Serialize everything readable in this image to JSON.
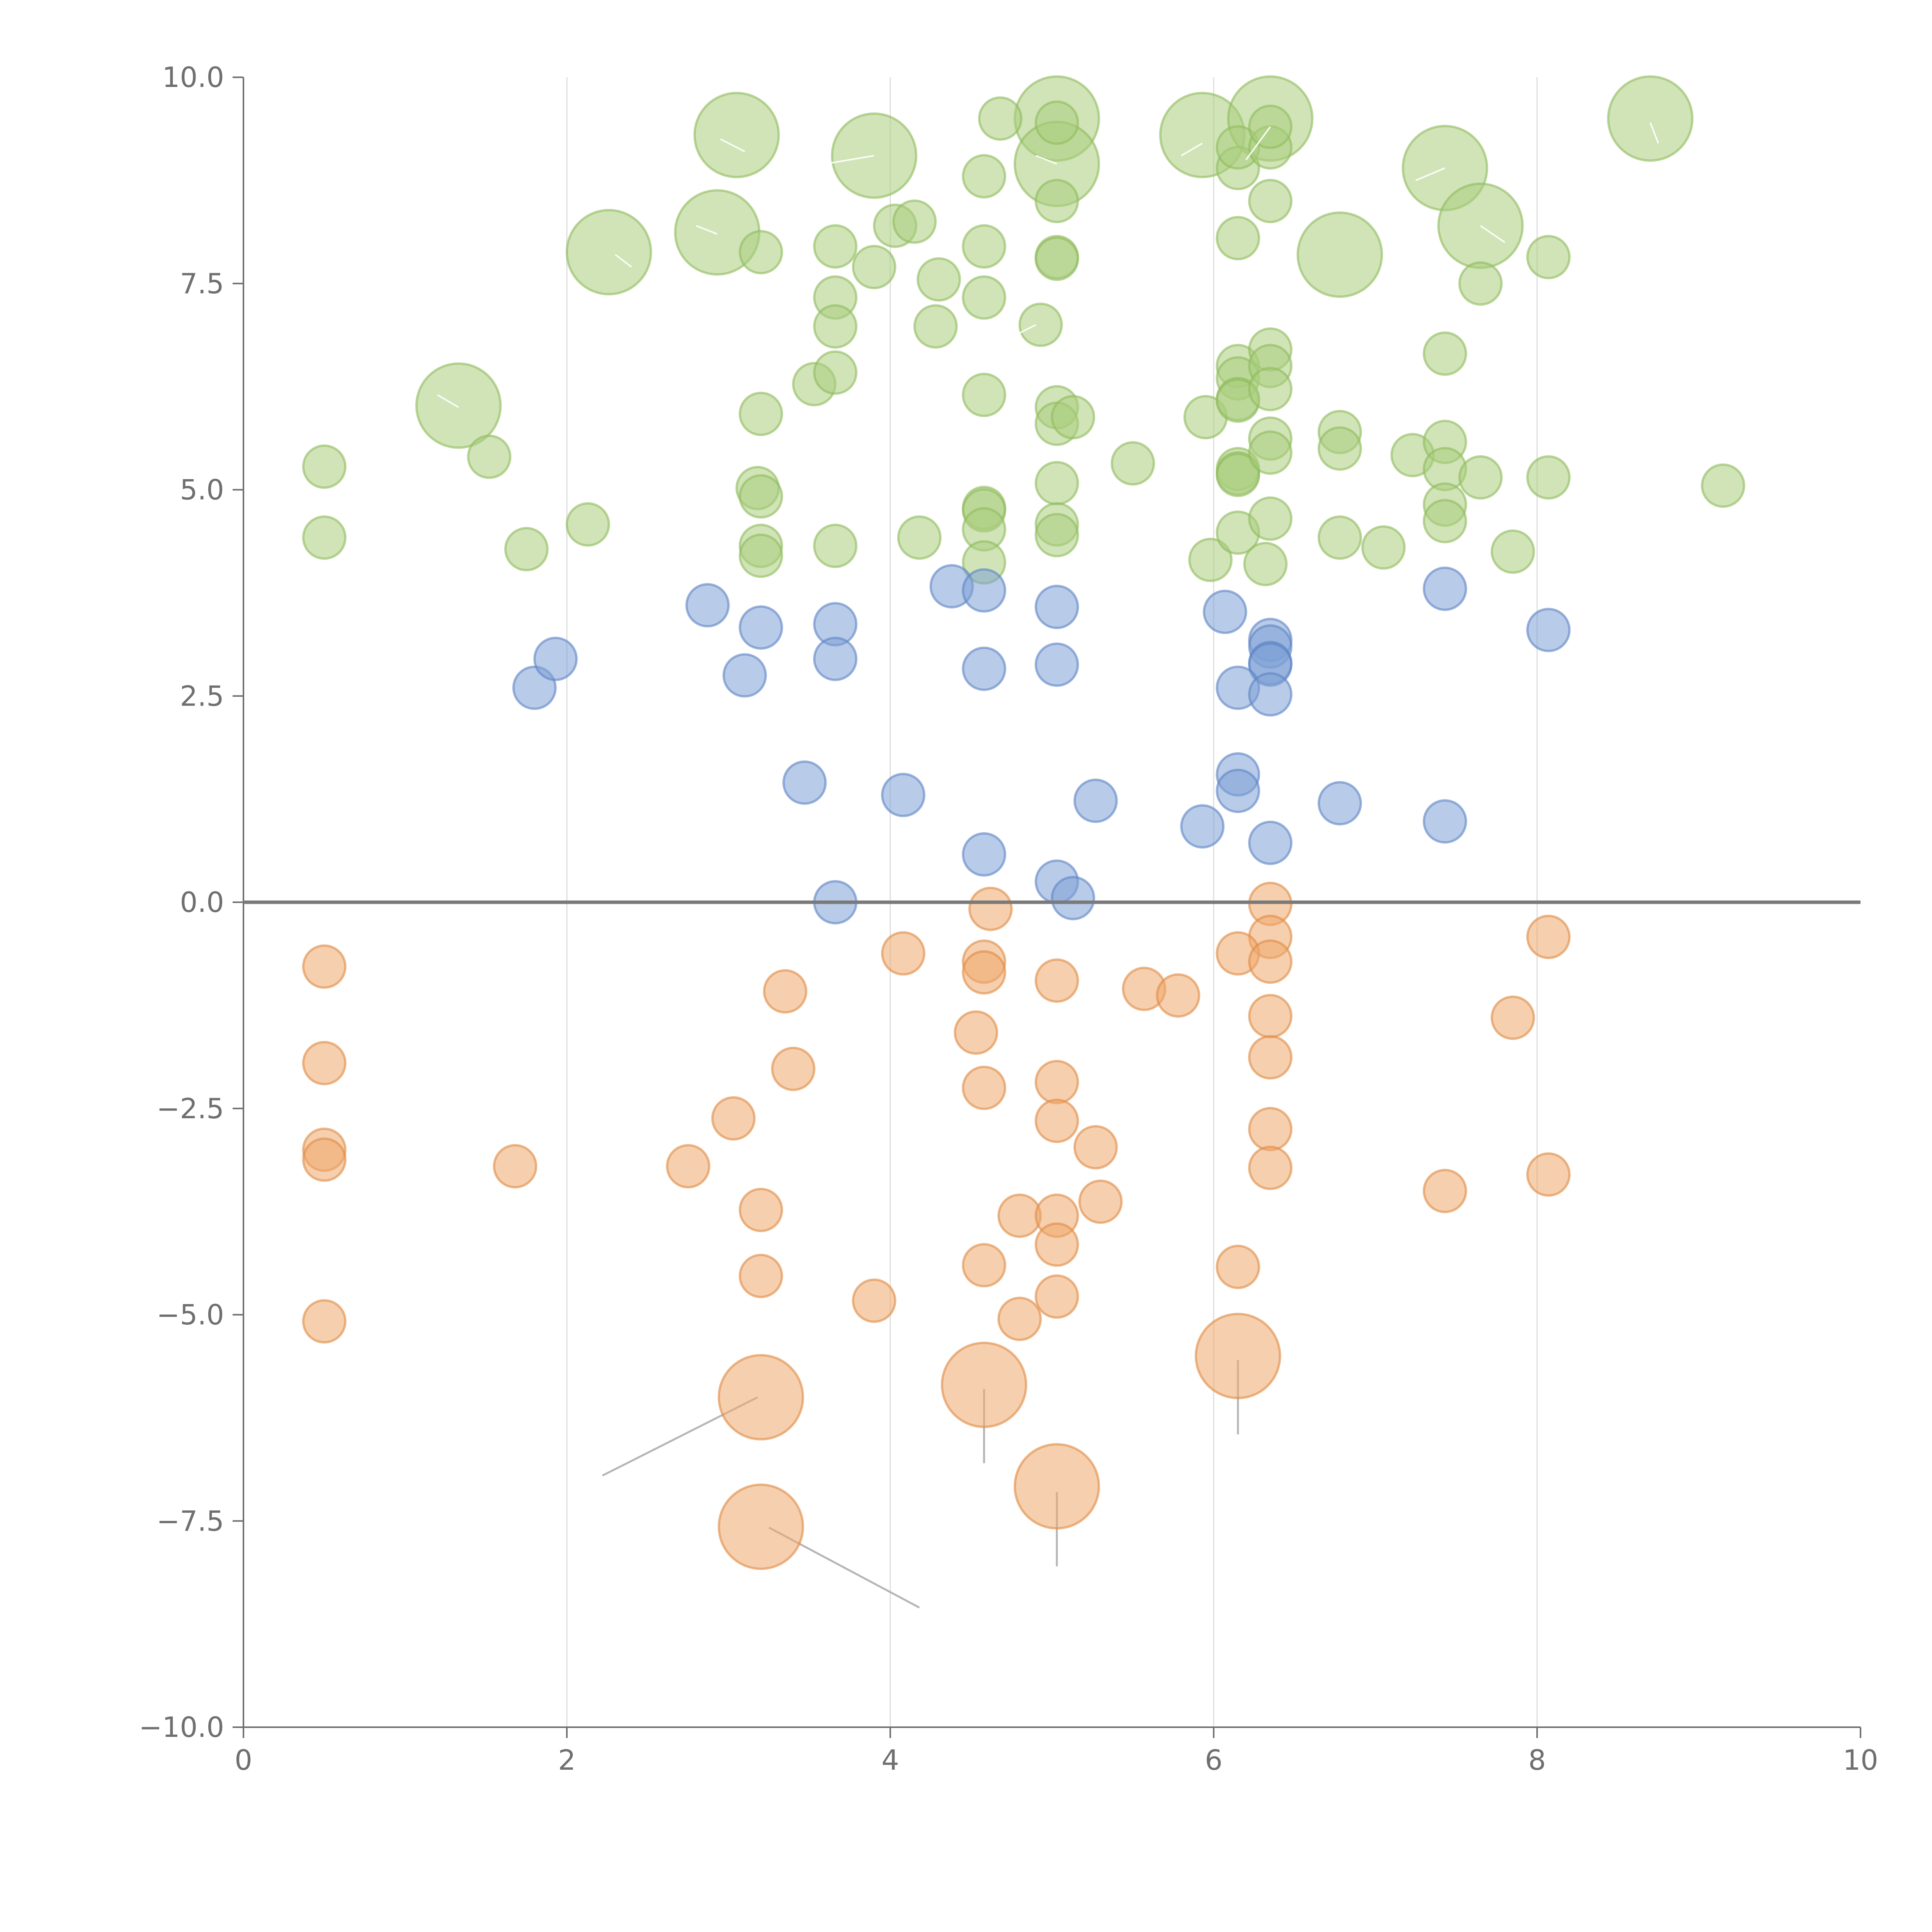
{
  "chart_data": {
    "type": "scatter",
    "xlim": [
      0,
      10
    ],
    "ylim": [
      -10,
      10
    ],
    "x_ticks": [
      "0",
      "2",
      "4",
      "6",
      "8",
      "10"
    ],
    "x_tick_values": [
      0,
      2,
      4,
      6,
      8,
      10
    ],
    "y_ticks": [
      "10.0",
      "7.5",
      "5.0",
      "2.5",
      "0.0",
      "−2.5",
      "−5.0",
      "−7.5",
      "−10.0"
    ],
    "y_tick_values": [
      10,
      7.5,
      5,
      2.5,
      0,
      -2.5,
      -5,
      -7.5,
      -10
    ],
    "grid": "vertical",
    "reference_line_y": 0,
    "colors": {
      "green": "#a9cd7e",
      "blue": "#7ea0d6",
      "orange": "#eea86b",
      "green_stroke": "#8fbb5c",
      "blue_stroke": "#5d84c4",
      "orange_stroke": "#e08a43"
    },
    "series": [
      {
        "color": "green",
        "points": [
          [
            3.05,
            9.3,
            34
          ],
          [
            3.9,
            9.05,
            34
          ],
          [
            5.03,
            9.5,
            34
          ],
          [
            5.03,
            8.95,
            34
          ],
          [
            5.93,
            9.3,
            34
          ],
          [
            6.35,
            9.5,
            34
          ],
          [
            8.7,
            9.5,
            34
          ],
          [
            7.43,
            8.9,
            34
          ],
          [
            2.93,
            8.12,
            34
          ],
          [
            2.26,
            7.88,
            34
          ],
          [
            7.65,
            8.2,
            34
          ],
          [
            6.78,
            7.85,
            34
          ],
          [
            1.33,
            6.02,
            34
          ],
          [
            4.68,
            9.5,
            17
          ],
          [
            5.03,
            9.45,
            17
          ],
          [
            4.58,
            8.8,
            17
          ],
          [
            6.15,
            8.9,
            17
          ],
          [
            6.15,
            9.15,
            17
          ],
          [
            6.35,
            9.15,
            17
          ],
          [
            6.35,
            9.4,
            17
          ],
          [
            4.03,
            8.2,
            17
          ],
          [
            4.15,
            8.25,
            17
          ],
          [
            3.2,
            7.88,
            17
          ],
          [
            3.66,
            7.95,
            17
          ],
          [
            3.9,
            7.7,
            17
          ],
          [
            4.58,
            7.95,
            17
          ],
          [
            5.03,
            7.82,
            17
          ],
          [
            5.03,
            7.8,
            17
          ],
          [
            6.15,
            8.05,
            17
          ],
          [
            6.35,
            8.5,
            17
          ],
          [
            5.03,
            8.5,
            17
          ],
          [
            7.65,
            7.5,
            17
          ],
          [
            8.07,
            7.82,
            17
          ],
          [
            3.66,
            7.33,
            17
          ],
          [
            3.66,
            6.98,
            17
          ],
          [
            4.3,
            7.55,
            17
          ],
          [
            4.28,
            6.98,
            17
          ],
          [
            4.58,
            7.33,
            17
          ],
          [
            4.93,
            7.0,
            17
          ],
          [
            3.53,
            6.28,
            17
          ],
          [
            3.66,
            6.42,
            17
          ],
          [
            4.58,
            6.15,
            17
          ],
          [
            3.2,
            5.92,
            17
          ],
          [
            5.03,
            6.0,
            17
          ],
          [
            5.03,
            5.8,
            17
          ],
          [
            5.13,
            5.88,
            17
          ],
          [
            5.95,
            5.88,
            17
          ],
          [
            6.15,
            6.5,
            17
          ],
          [
            6.15,
            6.35,
            17
          ],
          [
            6.15,
            6.1,
            17
          ],
          [
            6.15,
            6.08,
            17
          ],
          [
            6.35,
            6.7,
            17
          ],
          [
            6.35,
            6.5,
            17
          ],
          [
            6.35,
            6.22,
            17
          ],
          [
            7.43,
            6.65,
            17
          ],
          [
            0.5,
            5.28,
            17
          ],
          [
            1.52,
            5.4,
            17
          ],
          [
            0.5,
            4.42,
            17
          ],
          [
            1.75,
            4.28,
            17
          ],
          [
            2.13,
            4.58,
            17
          ],
          [
            3.18,
            5.02,
            17
          ],
          [
            3.2,
            4.92,
            17
          ],
          [
            3.2,
            4.32,
            17
          ],
          [
            3.2,
            4.2,
            17
          ],
          [
            3.66,
            4.32,
            17
          ],
          [
            4.18,
            4.42,
            17
          ],
          [
            4.58,
            4.78,
            17
          ],
          [
            4.58,
            4.75,
            17
          ],
          [
            4.58,
            4.52,
            17
          ],
          [
            4.58,
            4.12,
            17
          ],
          [
            5.03,
            5.08,
            17
          ],
          [
            5.03,
            4.58,
            17
          ],
          [
            5.03,
            4.45,
            17
          ],
          [
            5.5,
            5.32,
            17
          ],
          [
            5.98,
            4.15,
            17
          ],
          [
            6.15,
            5.25,
            17
          ],
          [
            6.15,
            5.2,
            17
          ],
          [
            6.15,
            5.18,
            17
          ],
          [
            6.15,
            4.48,
            17
          ],
          [
            6.35,
            5.62,
            17
          ],
          [
            6.35,
            5.45,
            17
          ],
          [
            6.35,
            4.65,
            17
          ],
          [
            6.32,
            4.1,
            17
          ],
          [
            6.78,
            5.7,
            17
          ],
          [
            6.78,
            5.5,
            17
          ],
          [
            6.78,
            4.42,
            17
          ],
          [
            7.05,
            4.3,
            17
          ],
          [
            7.23,
            5.42,
            17
          ],
          [
            7.43,
            5.58,
            17
          ],
          [
            7.43,
            5.25,
            17
          ],
          [
            7.43,
            4.82,
            17
          ],
          [
            7.43,
            4.62,
            17
          ],
          [
            7.65,
            5.15,
            17
          ],
          [
            7.85,
            4.25,
            17
          ],
          [
            8.07,
            5.15,
            17
          ],
          [
            9.15,
            5.05,
            17
          ]
        ]
      },
      {
        "color": "blue",
        "points": [
          [
            1.8,
            2.6,
            17
          ],
          [
            1.93,
            2.95,
            17
          ],
          [
            2.87,
            3.6,
            17
          ],
          [
            3.1,
            2.75,
            17
          ],
          [
            3.2,
            3.33,
            17
          ],
          [
            3.66,
            3.37,
            17
          ],
          [
            3.66,
            2.95,
            17
          ],
          [
            4.38,
            3.83,
            17
          ],
          [
            4.58,
            3.78,
            17
          ],
          [
            4.58,
            2.83,
            17
          ],
          [
            5.03,
            3.58,
            17
          ],
          [
            5.03,
            2.88,
            17
          ],
          [
            6.07,
            3.52,
            17
          ],
          [
            6.35,
            3.18,
            17
          ],
          [
            6.35,
            3.1,
            17
          ],
          [
            6.35,
            2.9,
            17
          ],
          [
            6.35,
            2.88,
            17
          ],
          [
            6.15,
            2.6,
            17
          ],
          [
            6.35,
            2.52,
            17
          ],
          [
            7.43,
            3.8,
            17
          ],
          [
            8.07,
            3.3,
            17
          ],
          [
            3.47,
            1.45,
            17
          ],
          [
            4.08,
            1.3,
            17
          ],
          [
            5.27,
            1.23,
            17
          ],
          [
            5.93,
            0.92,
            17
          ],
          [
            6.15,
            1.55,
            17
          ],
          [
            6.15,
            1.35,
            17
          ],
          [
            6.35,
            0.72,
            17
          ],
          [
            6.78,
            1.2,
            17
          ],
          [
            7.43,
            0.98,
            17
          ],
          [
            4.58,
            0.58,
            17
          ],
          [
            5.03,
            0.25,
            17
          ],
          [
            5.13,
            0.05,
            17
          ],
          [
            3.66,
            0.0,
            17
          ]
        ]
      },
      {
        "color": "orange",
        "points": [
          [
            4.62,
            -0.08,
            17
          ],
          [
            6.35,
            -0.02,
            17
          ],
          [
            6.35,
            -0.42,
            17
          ],
          [
            8.07,
            -0.42,
            17
          ],
          [
            0.5,
            -0.78,
            17
          ],
          [
            4.08,
            -0.62,
            17
          ],
          [
            4.58,
            -0.72,
            17
          ],
          [
            4.58,
            -0.85,
            17
          ],
          [
            6.15,
            -0.62,
            17
          ],
          [
            6.35,
            -0.72,
            17
          ],
          [
            3.35,
            -1.08,
            17
          ],
          [
            5.03,
            -0.95,
            17
          ],
          [
            5.57,
            -1.05,
            17
          ],
          [
            5.78,
            -1.13,
            17
          ],
          [
            4.53,
            -1.58,
            17
          ],
          [
            6.35,
            -1.38,
            17
          ],
          [
            7.85,
            -1.4,
            17
          ],
          [
            0.5,
            -1.95,
            17
          ],
          [
            3.4,
            -2.02,
            17
          ],
          [
            6.35,
            -1.88,
            17
          ],
          [
            4.58,
            -2.25,
            17
          ],
          [
            5.03,
            -2.18,
            17
          ],
          [
            3.03,
            -2.62,
            17
          ],
          [
            5.03,
            -2.65,
            17
          ],
          [
            5.27,
            -2.97,
            17
          ],
          [
            6.35,
            -2.75,
            17
          ],
          [
            0.5,
            -3.0,
            17
          ],
          [
            0.5,
            -3.12,
            17
          ],
          [
            1.68,
            -3.2,
            17
          ],
          [
            2.75,
            -3.2,
            17
          ],
          [
            6.35,
            -3.22,
            17
          ],
          [
            8.07,
            -3.3,
            17
          ],
          [
            5.3,
            -3.63,
            17
          ],
          [
            7.43,
            -3.5,
            17
          ],
          [
            3.2,
            -3.73,
            17
          ],
          [
            4.8,
            -3.8,
            17
          ],
          [
            5.03,
            -3.8,
            17
          ],
          [
            5.03,
            -4.15,
            17
          ],
          [
            3.2,
            -4.53,
            17
          ],
          [
            4.58,
            -4.4,
            17
          ],
          [
            6.15,
            -4.42,
            17
          ],
          [
            3.9,
            -4.83,
            17
          ],
          [
            5.03,
            -4.78,
            17
          ],
          [
            0.5,
            -5.08,
            17
          ],
          [
            4.8,
            -5.05,
            17
          ],
          [
            6.15,
            -5.5,
            34
          ],
          [
            4.58,
            -5.85,
            34
          ],
          [
            3.2,
            -6.0,
            34
          ],
          [
            5.03,
            -7.08,
            34
          ],
          [
            3.2,
            -7.57,
            34
          ]
        ]
      }
    ]
  }
}
